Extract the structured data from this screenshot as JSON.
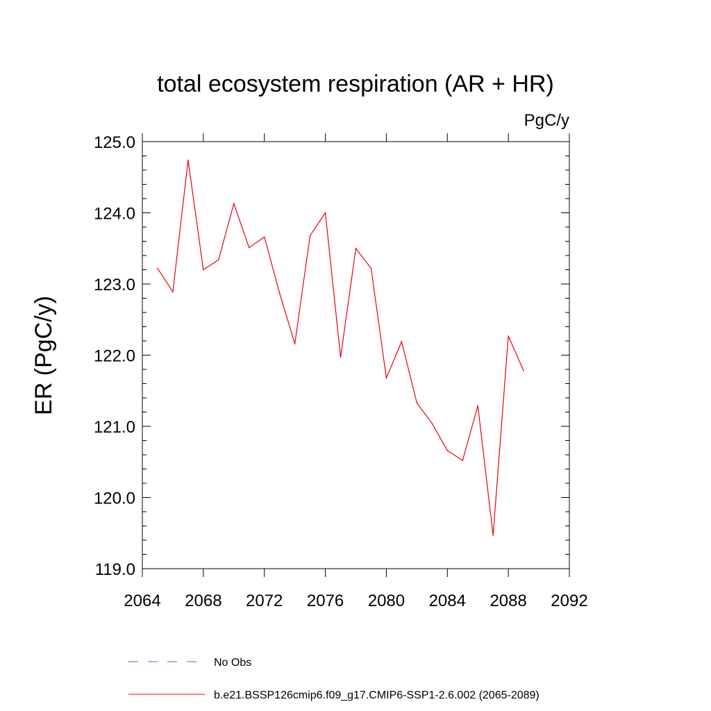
{
  "chart_data": {
    "type": "line",
    "title": "total ecosystem respiration (AR + HR)",
    "units": "PgC/y",
    "ylabel": "ER  (PgC/y)",
    "xlabel": "",
    "xlim": [
      2064,
      2092
    ],
    "ylim": [
      119.0,
      125.0
    ],
    "x_ticks": [
      2064,
      2068,
      2072,
      2076,
      2080,
      2084,
      2088,
      2092
    ],
    "x_tick_labels": [
      "2064",
      "2068",
      "2072",
      "2076",
      "2080",
      "2084",
      "2088",
      "2092"
    ],
    "y_ticks": [
      119.0,
      120.0,
      121.0,
      122.0,
      123.0,
      124.0,
      125.0
    ],
    "y_tick_labels": [
      "119.0",
      "120.0",
      "121.0",
      "122.0",
      "123.0",
      "124.0",
      "125.0"
    ],
    "grid": false,
    "series": [
      {
        "name": "b.e21.BSSP126cmip6.f09_g17.CMIP6-SSP1-2.6.002 (2065-2089)",
        "color": "#e8000b",
        "dash": "solid",
        "x": [
          2065,
          2066,
          2067,
          2068,
          2069,
          2070,
          2071,
          2072,
          2073,
          2074,
          2075,
          2076,
          2077,
          2078,
          2079,
          2080,
          2081,
          2082,
          2083,
          2084,
          2085,
          2086,
          2087,
          2088,
          2089
        ],
        "values": [
          123.22,
          122.89,
          124.74,
          123.2,
          123.34,
          124.13,
          123.51,
          123.66,
          122.87,
          122.16,
          123.68,
          124.0,
          121.97,
          123.5,
          123.22,
          121.68,
          122.19,
          121.33,
          121.04,
          120.66,
          120.52,
          121.29,
          119.47,
          122.27,
          121.78
        ]
      }
    ],
    "legend": {
      "placement": "bottom",
      "entries": [
        {
          "label": "No Obs",
          "color": "#6a5acd",
          "dash": "dashed"
        },
        {
          "label": "b.e21.BSSP126cmip6.f09_g17.CMIP6-SSP1-2.6.002 (2065-2089)",
          "color": "#e8000b",
          "dash": "solid"
        }
      ]
    }
  }
}
